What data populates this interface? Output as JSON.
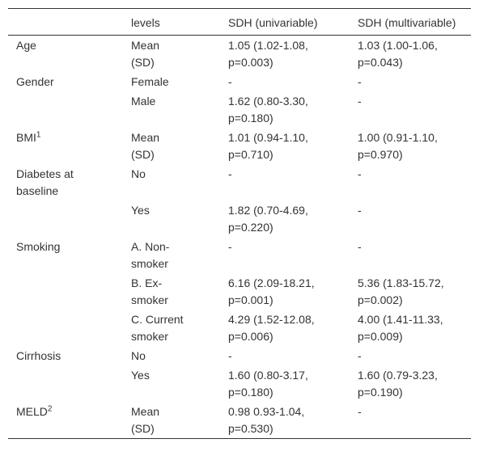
{
  "table": {
    "header": [
      "",
      "levels",
      "SDH (univariable)",
      "SDH (multivariable)"
    ],
    "rows": [
      [
        {
          "text": "Age"
        },
        "Mean (SD)",
        "1.05 (1.02-1.08, p=0.003)",
        "1.03 (1.00-1.06, p=0.043)"
      ],
      [
        {
          "text": "Gender"
        },
        "Female",
        "-",
        "-"
      ],
      [
        {
          "text": ""
        },
        "Male",
        "1.62 (0.80-3.30, p=0.180)",
        "-"
      ],
      [
        {
          "text": "BMI",
          "sup": "1"
        },
        "Mean (SD)",
        "1.01 (0.94-1.10, p=0.710)",
        "1.00 (0.91-1.10, p=0.970)"
      ],
      [
        {
          "text": "Diabetes at baseline"
        },
        "No",
        "-",
        "-"
      ],
      [
        {
          "text": ""
        },
        "Yes",
        "1.82 (0.70-4.69, p=0.220)",
        "-"
      ],
      [
        {
          "text": "Smoking"
        },
        "A. Non-smoker",
        "-",
        "-"
      ],
      [
        {
          "text": ""
        },
        "B. Ex-smoker",
        "6.16 (2.09-18.21, p=0.001)",
        "5.36 (1.83-15.72, p=0.002)"
      ],
      [
        {
          "text": ""
        },
        "C. Current smoker",
        "4.29 (1.52-12.08, p=0.006)",
        "4.00 (1.41-11.33, p=0.009)"
      ],
      [
        {
          "text": "Cirrhosis"
        },
        "No",
        "-",
        "-"
      ],
      [
        {
          "text": ""
        },
        "Yes",
        "1.60 (0.80-3.17, p=0.180)",
        "1.60 (0.79-3.23, p=0.190)"
      ],
      [
        {
          "text": "MELD",
          "sup": "2"
        },
        "Mean (SD)",
        "0.98 0.93-1.04, p=0.530)",
        "-"
      ]
    ]
  }
}
